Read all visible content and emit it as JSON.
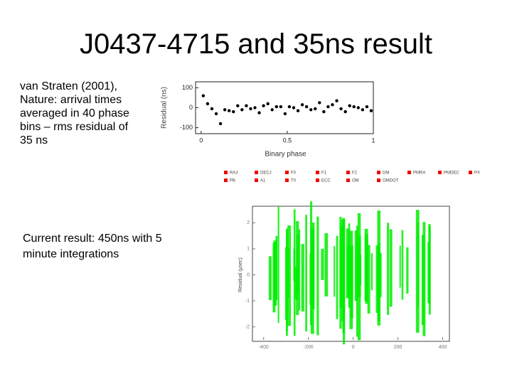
{
  "title": "J0437-4715 and 35ns result",
  "left_text": {
    "lines": [
      "van Straten (2001),",
      "Nature: arrival times",
      "averaged in 40 phase",
      "bins – rms residual of",
      "35 ns"
    ]
  },
  "bottom_text": {
    "lines": [
      "Current result: 450ns with 5",
      "minute integrations"
    ]
  },
  "fit_panel": {
    "params": [
      "RAJ",
      "DECJ",
      "F0",
      "F1",
      "F2",
      "DM",
      "PMRA",
      "PMDEC",
      "PX",
      "PB",
      "A1",
      "T0",
      "ECC",
      "OM",
      "OMDOT"
    ]
  },
  "chart_data": [
    {
      "type": "scatter",
      "x_label": "Binary phase",
      "y_label": "Residual (ns)",
      "x": [
        0.0125,
        0.0375,
        0.0625,
        0.0875,
        0.1125,
        0.1375,
        0.1625,
        0.1875,
        0.2125,
        0.2375,
        0.2625,
        0.2875,
        0.3125,
        0.3375,
        0.3625,
        0.3875,
        0.4125,
        0.4375,
        0.4625,
        0.4875,
        0.5125,
        0.5375,
        0.5625,
        0.5875,
        0.6125,
        0.6375,
        0.6625,
        0.6875,
        0.7125,
        0.7375,
        0.7625,
        0.7875,
        0.8125,
        0.8375,
        0.8625,
        0.8875,
        0.9125,
        0.9375,
        0.9625,
        0.9875
      ],
      "values": [
        60,
        20,
        -5,
        -30,
        -80,
        -10,
        -15,
        -20,
        10,
        -10,
        10,
        -5,
        0,
        -25,
        10,
        20,
        -10,
        5,
        5,
        -30,
        5,
        0,
        -15,
        15,
        5,
        -10,
        -5,
        25,
        -20,
        5,
        15,
        35,
        -5,
        -20,
        10,
        5,
        0,
        -10,
        5,
        -15
      ],
      "color": "#000000",
      "xlim": [
        -0.02,
        1.0
      ],
      "ylim": [
        -130,
        130
      ],
      "xticks": [
        0,
        0.5,
        1
      ],
      "yticks": [
        -100,
        0,
        100
      ]
    },
    {
      "type": "scatter",
      "y_label": "Residual (μsec)",
      "color": "#00ee00",
      "xlim": [
        -450,
        430
      ],
      "ylim": [
        -2.5,
        2.5
      ],
      "xticks": [
        -400,
        -200,
        0,
        200,
        400
      ],
      "yticks": [
        -2,
        -1,
        0,
        1,
        2
      ]
    }
  ]
}
